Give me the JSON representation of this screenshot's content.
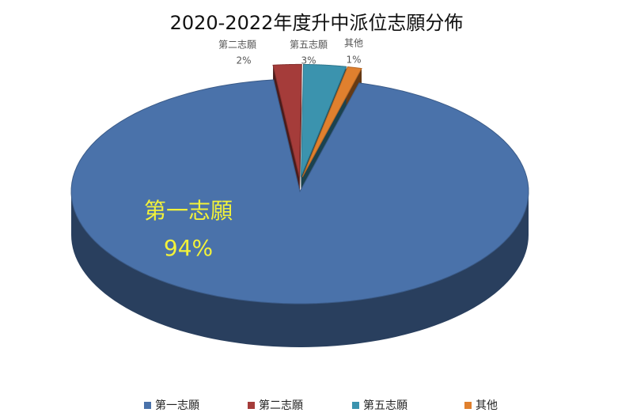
{
  "chart_data": {
    "type": "pie",
    "title": "2020-2022年度升中派位志願分佈",
    "categories": [
      "第一志願",
      "第二志願",
      "第五志願",
      "其他"
    ],
    "values": [
      94,
      2,
      3,
      1
    ],
    "value_labels": [
      "94%",
      "2%",
      "3%",
      "1%"
    ],
    "colors": [
      "#4a72aa",
      "#a53c3a",
      "#3b93ae",
      "#e0802e"
    ],
    "legend": "bottom"
  }
}
